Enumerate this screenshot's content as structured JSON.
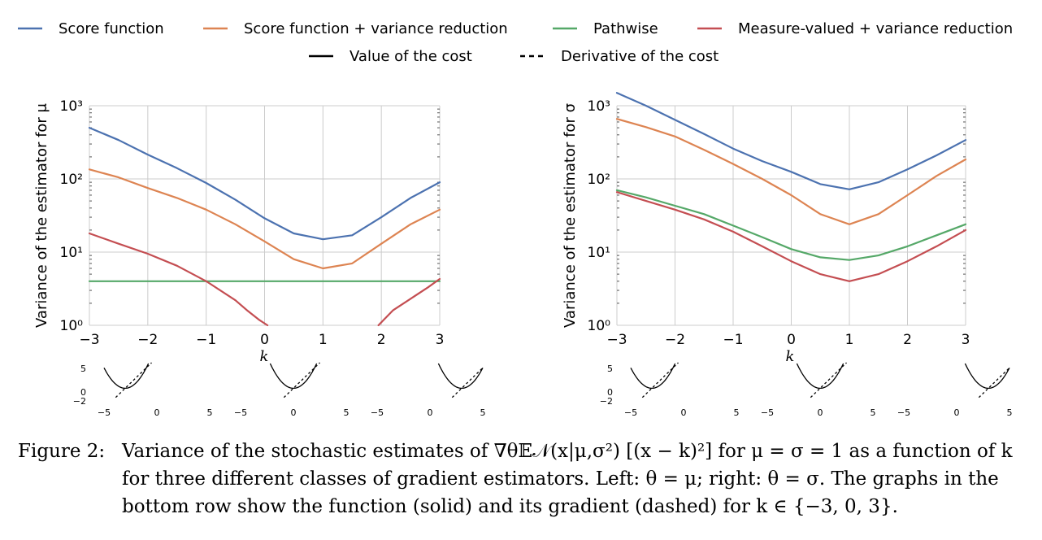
{
  "legend": {
    "items": [
      {
        "label": "Score function",
        "color": "#4c72b0",
        "dash": false
      },
      {
        "label": "Score function + variance reduction",
        "color": "#dd8452",
        "dash": false
      },
      {
        "label": "Pathwise",
        "color": "#55a868",
        "dash": false
      },
      {
        "label": "Measure-valued + variance reduction",
        "color": "#c44e52",
        "dash": false
      },
      {
        "label": "Value of the cost",
        "color": "#000000",
        "dash": false
      },
      {
        "label": "Derivative of the cost",
        "color": "#000000",
        "dash": true
      }
    ]
  },
  "chart_data": [
    {
      "type": "line",
      "xlabel": "k",
      "ylabel": "Variance of the estimator for μ",
      "xlim": [
        -3,
        3
      ],
      "ylim": [
        1,
        1000
      ],
      "yscale": "log",
      "xticks": [
        "−3",
        "−2",
        "−1",
        "0",
        "1",
        "2",
        "3"
      ],
      "yticks": [
        "10⁰",
        "10¹",
        "10²",
        "10³"
      ],
      "grid": true,
      "series": [
        {
          "name": "Score function",
          "x": [
            -3,
            -2.5,
            -2,
            -1.5,
            -1,
            -0.5,
            0,
            0.5,
            1,
            1.5,
            2,
            2.5,
            3
          ],
          "y": [
            500,
            340,
            215,
            140,
            88,
            52,
            29,
            18,
            15,
            17,
            30,
            55,
            90
          ]
        },
        {
          "name": "Score function + variance reduction",
          "x": [
            -3,
            -2.5,
            -2,
            -1.5,
            -1,
            -0.5,
            0,
            0.5,
            1,
            1.5,
            2,
            2.5,
            3
          ],
          "y": [
            135,
            105,
            75,
            55,
            38,
            24,
            14,
            8,
            6,
            7,
            13,
            24,
            38
          ]
        },
        {
          "name": "Pathwise",
          "x": [
            -3,
            3
          ],
          "y": [
            4,
            4
          ]
        },
        {
          "name": "Measure-valued + variance reduction",
          "x": [
            -3,
            -2.5,
            -2,
            -1.5,
            -1,
            -0.5,
            -0.3,
            -0.1,
            0.05
          ],
          "y": [
            18,
            13,
            9.5,
            6.5,
            4,
            2.2,
            1.6,
            1.2,
            1
          ]
        },
        {
          "name": "Measure-valued + variance reduction (right branch)",
          "x": [
            1.95,
            2.2,
            2.5,
            2.8,
            3
          ],
          "y": [
            1,
            1.6,
            2.3,
            3.3,
            4.3
          ]
        }
      ]
    },
    {
      "type": "line",
      "xlabel": "",
      "ylabel": "Variance of the estimator for σ",
      "xlim": [
        -3,
        3
      ],
      "ylim": [
        1,
        1000
      ],
      "yscale": "log",
      "xticks": [
        "−3",
        "−2",
        "−1",
        "0",
        "1",
        "2",
        "3"
      ],
      "yticks": [
        "10⁰",
        "10¹",
        "10²",
        "10³"
      ],
      "grid": true,
      "series": [
        {
          "name": "Score function",
          "x": [
            -3,
            -2.5,
            -2,
            -1.5,
            -1,
            -0.5,
            0,
            0.5,
            1,
            1.5,
            2,
            2.5,
            3
          ],
          "y": [
            1500,
            1000,
            640,
            410,
            260,
            175,
            125,
            85,
            72,
            90,
            135,
            210,
            340
          ]
        },
        {
          "name": "Score function + variance reduction",
          "x": [
            -3,
            -2.5,
            -2,
            -1.5,
            -1,
            -0.5,
            0,
            0.5,
            1,
            1.5,
            2,
            2.5,
            3
          ],
          "y": [
            660,
            510,
            380,
            250,
            160,
            100,
            60,
            33,
            24,
            33,
            60,
            110,
            185
          ]
        },
        {
          "name": "Pathwise",
          "x": [
            -3,
            -2.5,
            -2,
            -1.5,
            -1,
            -0.5,
            0,
            0.5,
            1,
            1.5,
            2,
            2.5,
            3
          ],
          "y": [
            70,
            56,
            43,
            33,
            23,
            16,
            11,
            8.5,
            7.8,
            9,
            12,
            17,
            24
          ]
        },
        {
          "name": "Measure-valued + variance reduction",
          "x": [
            -3,
            -2.5,
            -2,
            -1.5,
            -1,
            -0.5,
            0,
            0.5,
            1,
            1.5,
            2,
            2.5,
            3
          ],
          "y": [
            66,
            50,
            38,
            28,
            19,
            12,
            7.5,
            5,
            4,
            5,
            7.5,
            12,
            20
          ]
        }
      ]
    }
  ],
  "left_bottom_xlabel": "k",
  "right_bottom_xlabel": "k",
  "mini_plots": {
    "left": {
      "k": [
        -3,
        0,
        3
      ],
      "xticks": [
        "−5",
        "0",
        "5",
        "−5",
        "0",
        "5",
        "−5",
        "0",
        "5"
      ],
      "ytick_top": "5",
      "ytick_mid": "0",
      "ytick_bot": "−2"
    },
    "right": {
      "k": [
        -3,
        0,
        3
      ],
      "xticks": [
        "−5",
        "0",
        "5",
        "−5",
        "0",
        "5",
        "−5",
        "0",
        "5"
      ],
      "ytick_top": "5",
      "ytick_mid": "0",
      "ytick_bot": "−2"
    }
  },
  "caption": {
    "label": "Figure 2:",
    "text": "Variance of the stochastic estimates of ∇θ𝔼𝒩(x|μ,σ²) [(x − k)²] for μ = σ = 1 as a function of k for three different classes of gradient estimators. Left: θ = μ; right: θ = σ. The graphs in the bottom row show the function (solid) and its gradient (dashed) for k ∈ {−3, 0, 3}."
  }
}
